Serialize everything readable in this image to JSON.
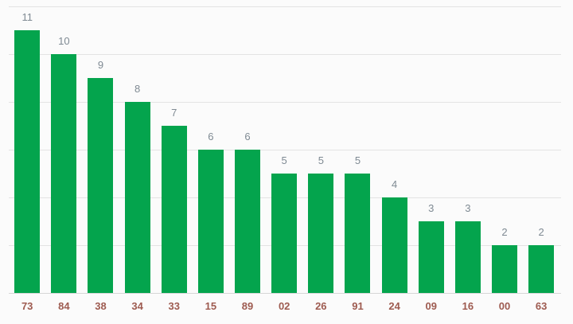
{
  "chart_data": {
    "type": "bar",
    "title": "",
    "xlabel": "",
    "ylabel": "",
    "categories": [
      "73",
      "84",
      "38",
      "34",
      "33",
      "15",
      "89",
      "02",
      "26",
      "91",
      "24",
      "09",
      "16",
      "00",
      "63"
    ],
    "values": [
      11,
      10,
      9,
      8,
      7,
      6,
      6,
      5,
      5,
      5,
      4,
      3,
      3,
      2,
      2
    ],
    "bar_labels": [
      "11",
      "10",
      "9",
      "8",
      "7",
      "6",
      "6",
      "5",
      "5",
      "5",
      "4",
      "3",
      "3",
      "2",
      "2"
    ],
    "ylim": [
      0,
      12
    ],
    "grid_values": [
      2,
      4,
      6,
      8,
      10,
      12
    ],
    "grid": "horizontal-only",
    "legend": "none",
    "y_axis_tick_labels_visible": false,
    "colors": {
      "bar": "#04a44d",
      "bar_value_label": "#7f8a93",
      "x_axis_label": "#9e5b50",
      "gridline": "#e3e3e3",
      "axis_baseline": "#d6d6d6",
      "background": "#fbfbfb"
    }
  }
}
